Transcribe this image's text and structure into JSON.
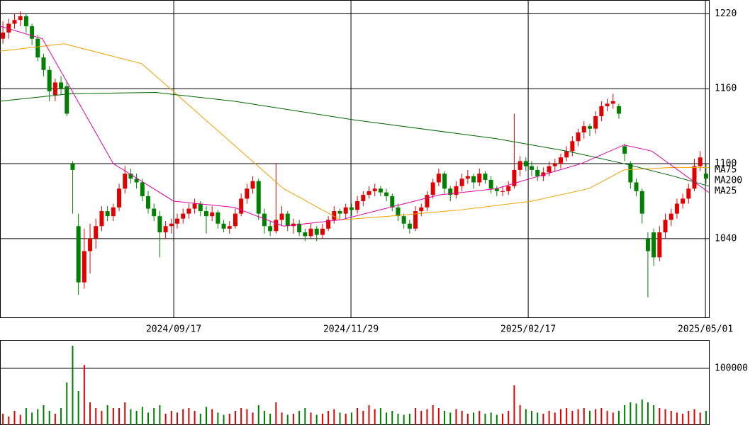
{
  "chart_data": {
    "type": "candlestick",
    "up_color": "#e00000",
    "down_color": "#008000",
    "grid": true,
    "xlim": [
      0,
      122
    ],
    "xticks": [
      {
        "value": 29.9,
        "label": "2024/09/17"
      },
      {
        "value": 60.4,
        "label": "2024/11/29"
      },
      {
        "value": 90.9,
        "label": "2025/02/17"
      },
      {
        "value": 121.4,
        "label": "2025/05/01"
      }
    ],
    "ylim": [
      977,
      1231
    ],
    "yticks": [
      1040,
      1100,
      1160,
      1220
    ],
    "candles": [
      [
        1200,
        1214,
        1196,
        1205
      ],
      [
        1205,
        1216,
        1200,
        1212
      ],
      [
        1212,
        1220,
        1208,
        1215
      ],
      [
        1215,
        1222,
        1210,
        1218
      ],
      [
        1218,
        1220,
        1205,
        1210
      ],
      [
        1210,
        1212,
        1195,
        1200
      ],
      [
        1200,
        1203,
        1182,
        1185
      ],
      [
        1185,
        1188,
        1170,
        1175
      ],
      [
        1175,
        1178,
        1150,
        1158
      ],
      [
        1155,
        1168,
        1150,
        1165
      ],
      [
        1165,
        1170,
        1155,
        1160
      ],
      [
        1162,
        1166,
        1138,
        1140
      ],
      [
        1100,
        1102,
        1060,
        1095
      ],
      [
        1050,
        1060,
        995,
        1005
      ],
      [
        1005,
        1048,
        1000,
        1030
      ],
      [
        1030,
        1052,
        1012,
        1040
      ],
      [
        1040,
        1056,
        1032,
        1050
      ],
      [
        1050,
        1066,
        1046,
        1062
      ],
      [
        1062,
        1066,
        1054,
        1058
      ],
      [
        1058,
        1068,
        1054,
        1065
      ],
      [
        1065,
        1084,
        1062,
        1080
      ],
      [
        1080,
        1098,
        1076,
        1092
      ],
      [
        1092,
        1096,
        1084,
        1088
      ],
      [
        1088,
        1092,
        1080,
        1085
      ],
      [
        1085,
        1088,
        1070,
        1074
      ],
      [
        1074,
        1078,
        1060,
        1064
      ],
      [
        1064,
        1068,
        1054,
        1058
      ],
      [
        1058,
        1062,
        1025,
        1045
      ],
      [
        1045,
        1054,
        1040,
        1050
      ],
      [
        1050,
        1056,
        1044,
        1052
      ],
      [
        1052,
        1060,
        1048,
        1056
      ],
      [
        1056,
        1064,
        1052,
        1060
      ],
      [
        1060,
        1068,
        1056,
        1064
      ],
      [
        1064,
        1072,
        1060,
        1068
      ],
      [
        1068,
        1070,
        1058,
        1062
      ],
      [
        1062,
        1066,
        1044,
        1058
      ],
      [
        1058,
        1066,
        1054,
        1061
      ],
      [
        1061,
        1063,
        1048,
        1052
      ],
      [
        1052,
        1055,
        1045,
        1048
      ],
      [
        1048,
        1054,
        1044,
        1050
      ],
      [
        1050,
        1064,
        1048,
        1060
      ],
      [
        1060,
        1076,
        1058,
        1072
      ],
      [
        1072,
        1084,
        1068,
        1080
      ],
      [
        1080,
        1090,
        1076,
        1086
      ],
      [
        1086,
        1088,
        1055,
        1060
      ],
      [
        1060,
        1064,
        1044,
        1050
      ],
      [
        1050,
        1054,
        1042,
        1046
      ],
      [
        1046,
        1100,
        1044,
        1055
      ],
      [
        1055,
        1066,
        1050,
        1060
      ],
      [
        1060,
        1062,
        1046,
        1050
      ],
      [
        1050,
        1056,
        1044,
        1052
      ],
      [
        1052,
        1055,
        1042,
        1045
      ],
      [
        1045,
        1048,
        1038,
        1042
      ],
      [
        1042,
        1052,
        1040,
        1048
      ],
      [
        1048,
        1050,
        1038,
        1043
      ],
      [
        1043,
        1052,
        1040,
        1048
      ],
      [
        1048,
        1058,
        1046,
        1055
      ],
      [
        1055,
        1066,
        1052,
        1062
      ],
      [
        1062,
        1064,
        1056,
        1060
      ],
      [
        1060,
        1068,
        1056,
        1065
      ],
      [
        1065,
        1068,
        1058,
        1063
      ],
      [
        1063,
        1074,
        1060,
        1070
      ],
      [
        1070,
        1078,
        1066,
        1075
      ],
      [
        1075,
        1082,
        1072,
        1078
      ],
      [
        1078,
        1084,
        1074,
        1080
      ],
      [
        1080,
        1082,
        1074,
        1077
      ],
      [
        1077,
        1080,
        1070,
        1074
      ],
      [
        1074,
        1076,
        1062,
        1065
      ],
      [
        1065,
        1068,
        1054,
        1058
      ],
      [
        1058,
        1060,
        1048,
        1052
      ],
      [
        1052,
        1055,
        1044,
        1048
      ],
      [
        1048,
        1066,
        1046,
        1062
      ],
      [
        1062,
        1068,
        1058,
        1065
      ],
      [
        1065,
        1078,
        1062,
        1075
      ],
      [
        1075,
        1088,
        1072,
        1085
      ],
      [
        1085,
        1096,
        1082,
        1092
      ],
      [
        1092,
        1094,
        1076,
        1080
      ],
      [
        1080,
        1082,
        1070,
        1075
      ],
      [
        1075,
        1086,
        1072,
        1082
      ],
      [
        1082,
        1092,
        1078,
        1088
      ],
      [
        1088,
        1095,
        1084,
        1090
      ],
      [
        1090,
        1092,
        1080,
        1085
      ],
      [
        1085,
        1096,
        1082,
        1092
      ],
      [
        1092,
        1094,
        1084,
        1087
      ],
      [
        1087,
        1090,
        1076,
        1080
      ],
      [
        1080,
        1082,
        1074,
        1078
      ],
      [
        1078,
        1082,
        1074,
        1078
      ],
      [
        1078,
        1086,
        1075,
        1082
      ],
      [
        1082,
        1140,
        1080,
        1095
      ],
      [
        1095,
        1106,
        1090,
        1102
      ],
      [
        1102,
        1105,
        1094,
        1098
      ],
      [
        1098,
        1102,
        1090,
        1095
      ],
      [
        1095,
        1098,
        1086,
        1090
      ],
      [
        1090,
        1097,
        1086,
        1093
      ],
      [
        1093,
        1102,
        1090,
        1098
      ],
      [
        1098,
        1104,
        1094,
        1100
      ],
      [
        1100,
        1108,
        1096,
        1105
      ],
      [
        1105,
        1114,
        1102,
        1110
      ],
      [
        1110,
        1122,
        1106,
        1118
      ],
      [
        1118,
        1128,
        1114,
        1125
      ],
      [
        1125,
        1134,
        1120,
        1130
      ],
      [
        1130,
        1132,
        1122,
        1128
      ],
      [
        1128,
        1142,
        1124,
        1138
      ],
      [
        1138,
        1150,
        1134,
        1146
      ],
      [
        1146,
        1152,
        1142,
        1148
      ],
      [
        1148,
        1156,
        1144,
        1150
      ],
      [
        1146,
        1148,
        1136,
        1140
      ],
      [
        1114,
        1116,
        1102,
        1108
      ],
      [
        1100,
        1102,
        1080,
        1085
      ],
      [
        1085,
        1088,
        1074,
        1078
      ],
      [
        1078,
        1080,
        1052,
        1060
      ],
      [
        1040,
        1045,
        993,
        1030
      ],
      [
        1045,
        1048,
        1018,
        1025
      ],
      [
        1025,
        1050,
        1022,
        1045
      ],
      [
        1045,
        1060,
        1040,
        1055
      ],
      [
        1055,
        1064,
        1050,
        1060
      ],
      [
        1060,
        1072,
        1056,
        1068
      ],
      [
        1068,
        1076,
        1064,
        1072
      ],
      [
        1072,
        1084,
        1068,
        1080
      ],
      [
        1080,
        1104,
        1078,
        1098
      ],
      [
        1098,
        1110,
        1094,
        1105
      ],
      [
        1092,
        1100,
        1084,
        1088
      ]
    ],
    "moving_averages": [
      {
        "name": "MA75",
        "color": "#f0a000",
        "x": [
          0,
          11,
          24.4,
          36.6,
          48.8,
          58.6,
          67.1,
          79.3,
          91.5,
          101.3,
          107.4,
          115.9,
          122
        ],
        "values": [
          1190,
          1196,
          1180,
          1130,
          1080,
          1055,
          1058,
          1063,
          1070,
          1080,
          1095,
          1097,
          1097
        ]
      },
      {
        "name": "MA200",
        "color": "#006400",
        "x": [
          0,
          12.2,
          26.8,
          40.3,
          61,
          85.4,
          97.6,
          107.4,
          115.9,
          122
        ],
        "values": [
          1150,
          1156,
          1157,
          1150,
          1135,
          1120,
          1110,
          1100,
          1090,
          1082
        ]
      },
      {
        "name": "MA25",
        "color": "#e000a0",
        "x": [
          0,
          7.3,
          13.4,
          19.5,
          29.9,
          40.3,
          48.8,
          58.6,
          67.1,
          75.6,
          85.4,
          92.7,
          100,
          107.4,
          112.2,
          119.6,
          122
        ],
        "values": [
          1210,
          1200,
          1150,
          1100,
          1070,
          1065,
          1050,
          1055,
          1065,
          1075,
          1080,
          1090,
          1100,
          1115,
          1110,
          1085,
          1077
        ]
      }
    ],
    "volume": {
      "ylim": [
        0,
        150000
      ],
      "yticks": [
        100000
      ],
      "values": [
        20000,
        15000,
        25000,
        18000,
        30000,
        22000,
        28000,
        35000,
        25000,
        20000,
        30000,
        75000,
        140000,
        60000,
        106000,
        40000,
        30000,
        25000,
        35000,
        30000,
        30000,
        40000,
        28000,
        25000,
        32000,
        22000,
        30000,
        35000,
        20000,
        25000,
        22000,
        28000,
        30000,
        25000,
        20000,
        32000,
        28000,
        22000,
        18000,
        20000,
        25000,
        30000,
        28000,
        22000,
        35000,
        25000,
        20000,
        40000,
        22000,
        18000,
        20000,
        25000,
        30000,
        22000,
        18000,
        20000,
        25000,
        28000,
        22000,
        20000,
        22000,
        30000,
        25000,
        35000,
        28000,
        30000,
        22000,
        25000,
        20000,
        18000,
        20000,
        30000,
        25000,
        28000,
        35000,
        30000,
        25000,
        22000,
        28000,
        25000,
        20000,
        22000,
        25000,
        20000,
        22000,
        18000,
        20000,
        25000,
        70000,
        35000,
        28000,
        25000,
        22000,
        20000,
        25000,
        22000,
        28000,
        30000,
        25000,
        28000,
        30000,
        25000,
        28000,
        30000,
        25000,
        22000,
        25000,
        35000,
        40000,
        38000,
        45000,
        40000,
        35000,
        30000,
        28000,
        25000,
        22000,
        20000,
        25000,
        28000,
        22000,
        25000
      ]
    }
  }
}
